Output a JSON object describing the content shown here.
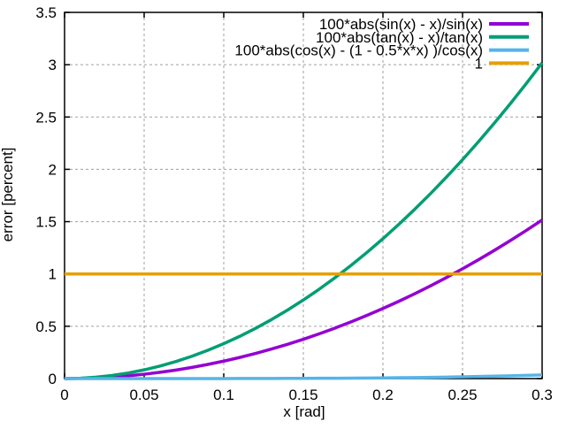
{
  "chart_data": {
    "type": "line",
    "title": "",
    "xlabel": "x [rad]",
    "ylabel": "error [percent]",
    "xlim": [
      0,
      0.3
    ],
    "ylim": [
      0,
      3.5
    ],
    "xtick_labels": [
      "0",
      "0.05",
      "0.1",
      "0.15",
      "0.2",
      "0.25",
      "0.3"
    ],
    "ytick_labels": [
      "0",
      "0.5",
      "1",
      "1.5",
      "2",
      "2.5",
      "3",
      "3.5"
    ],
    "grid": true,
    "grid_style": "dashed",
    "legend_position": "top-right-inside",
    "colors": {
      "axis": "#000000",
      "grid": "#a0a0a0",
      "text": "#000000",
      "background": "#ffffff"
    },
    "x": [
      0,
      0.01,
      0.02,
      0.03,
      0.04,
      0.05,
      0.06,
      0.07,
      0.08,
      0.09,
      0.1,
      0.11,
      0.12,
      0.13,
      0.14,
      0.15,
      0.16,
      0.17,
      0.18,
      0.19,
      0.2,
      0.21,
      0.22,
      0.23,
      0.24,
      0.25,
      0.26,
      0.27,
      0.28,
      0.29,
      0.3
    ],
    "series": [
      {
        "name": "100*abs(sin(x) - x)/sin(x)",
        "color": "#9400d3",
        "values": [
          0,
          0.00167,
          0.00667,
          0.015,
          0.02667,
          0.04168,
          0.06003,
          0.08171,
          0.10675,
          0.13513,
          0.16686,
          0.20195,
          0.2404,
          0.28222,
          0.32741,
          0.37598,
          0.42794,
          0.48329,
          0.54204,
          0.6042,
          0.66978,
          0.73878,
          0.81122,
          0.88711,
          0.96645,
          1.04927,
          1.13556,
          1.22533,
          1.31862,
          1.41542,
          1.51575
        ]
      },
      {
        "name": "100*abs(tan(x) - x)/tan(x)",
        "color": "#009e73",
        "values": [
          0,
          0.00333,
          0.01333,
          0.03,
          0.05334,
          0.08335,
          0.12003,
          0.16339,
          0.21342,
          0.27015,
          0.33356,
          0.40366,
          0.48046,
          0.56397,
          0.65419,
          0.75113,
          0.85479,
          0.96519,
          1.08233,
          1.20623,
          1.33689,
          1.47432,
          1.61854,
          1.76955,
          1.92737,
          2.09201,
          2.26349,
          2.44181,
          2.62699,
          2.81905,
          3.018
        ]
      },
      {
        "name": "100*abs(cos(x) - (1 - 0.5*x*x) )/cos(x)",
        "color": "#56b4e9",
        "values": [
          0,
          0,
          1e-06,
          3e-06,
          1.1e-05,
          2.6e-05,
          5.4e-05,
          0.0001,
          0.000171,
          0.000274,
          0.000419,
          0.000614,
          0.00087,
          0.0012,
          0.001616,
          0.002132,
          0.002764,
          0.003528,
          0.004441,
          0.005523,
          0.006793,
          0.008273,
          0.009986,
          0.011954,
          0.014205,
          0.016763,
          0.019658,
          0.02292,
          0.026579,
          0.030668,
          0.035222
        ]
      },
      {
        "name": "1",
        "color": "#e69f00",
        "x": [
          0,
          0.3
        ],
        "values": [
          1,
          1
        ]
      }
    ]
  }
}
